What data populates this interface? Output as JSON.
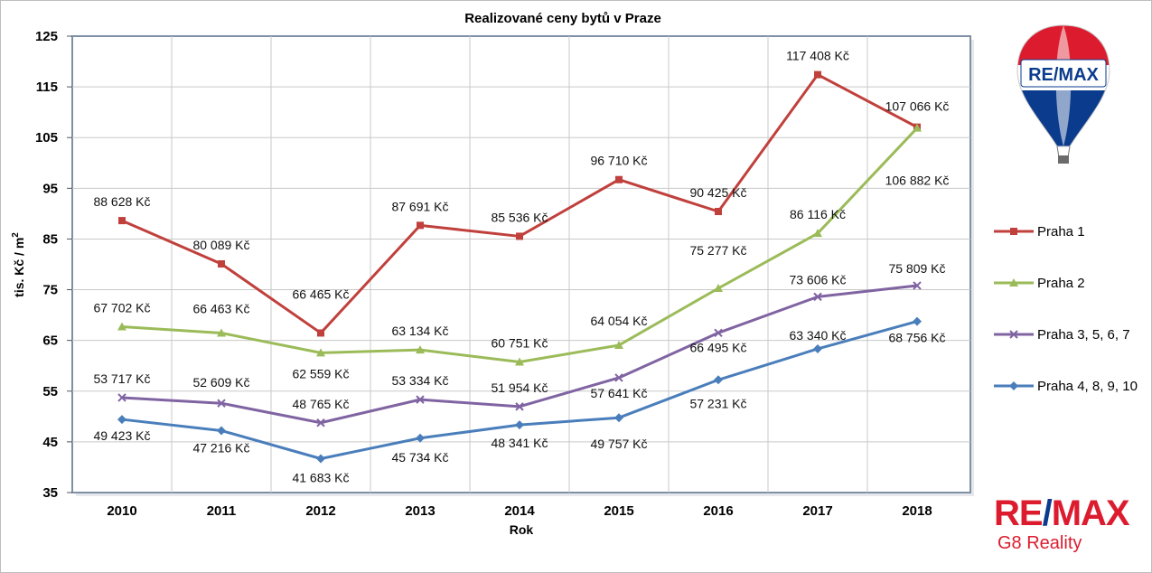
{
  "chart_data": {
    "type": "line",
    "title": "Realizované ceny bytů v Praze",
    "xlabel": "Rok",
    "ylabel": "tis. Kč / m",
    "ylabel_sup": "2",
    "categories": [
      "2010",
      "2011",
      "2012",
      "2013",
      "2014",
      "2015",
      "2016",
      "2017",
      "2018"
    ],
    "ylim": [
      35,
      125
    ],
    "yticks": [
      35,
      45,
      55,
      65,
      75,
      85,
      95,
      105,
      115,
      125
    ],
    "grid": true,
    "legend_position": "right",
    "series": [
      {
        "name": "Praha 1",
        "color": "#c0403c",
        "marker": "square",
        "values": [
          88.628,
          80.089,
          66.465,
          87.691,
          85.536,
          96.71,
          90.425,
          117.408,
          107.066
        ],
        "labels": [
          "88 628 Kč",
          "80 089 Kč",
          "66 465 Kč",
          "87 691 Kč",
          "85 536 Kč",
          "96 710 Kč",
          "90 425 Kč",
          "117 408 Kč",
          "107 066 Kč"
        ]
      },
      {
        "name": "Praha 2",
        "color": "#9bbb59",
        "marker": "triangle",
        "values": [
          67.702,
          66.463,
          62.559,
          63.134,
          60.751,
          64.054,
          75.277,
          86.116,
          106.882
        ],
        "labels": [
          "67 702 Kč",
          "66 463 Kč",
          "62 559 Kč",
          "63 134 Kč",
          "60 751 Kč",
          "64 054 Kč",
          "75 277 Kč",
          "86 116 Kč",
          "106 882 Kč"
        ]
      },
      {
        "name": "Praha 3, 5, 6, 7",
        "color": "#8064a2",
        "marker": "x",
        "values": [
          53.717,
          52.609,
          48.765,
          53.334,
          51.954,
          57.641,
          66.495,
          73.606,
          75.809
        ],
        "labels": [
          "53 717 Kč",
          "52 609 Kč",
          "48 765 Kč",
          "53 334 Kč",
          "51 954 Kč",
          "57 641 Kč",
          "66 495 Kč",
          "73 606 Kč",
          "75 809 Kč"
        ]
      },
      {
        "name": "Praha 4, 8, 9, 10",
        "color": "#4a7ebb",
        "marker": "diamond",
        "values": [
          49.423,
          47.216,
          41.683,
          45.734,
          48.341,
          49.757,
          57.231,
          63.34,
          68.756
        ],
        "labels": [
          "49 423 Kč",
          "47 216 Kč",
          "41 683 Kč",
          "45 734 Kč",
          "48 341 Kč",
          "49 757 Kč",
          "57 231 Kč",
          "63 340 Kč",
          "68 756 Kč"
        ]
      }
    ]
  },
  "balloon_logo_text": "RE/MAX",
  "brand": {
    "logo_left": "RE",
    "logo_slash": "/",
    "logo_right": "MAX",
    "subtitle": "G8 Reality"
  }
}
